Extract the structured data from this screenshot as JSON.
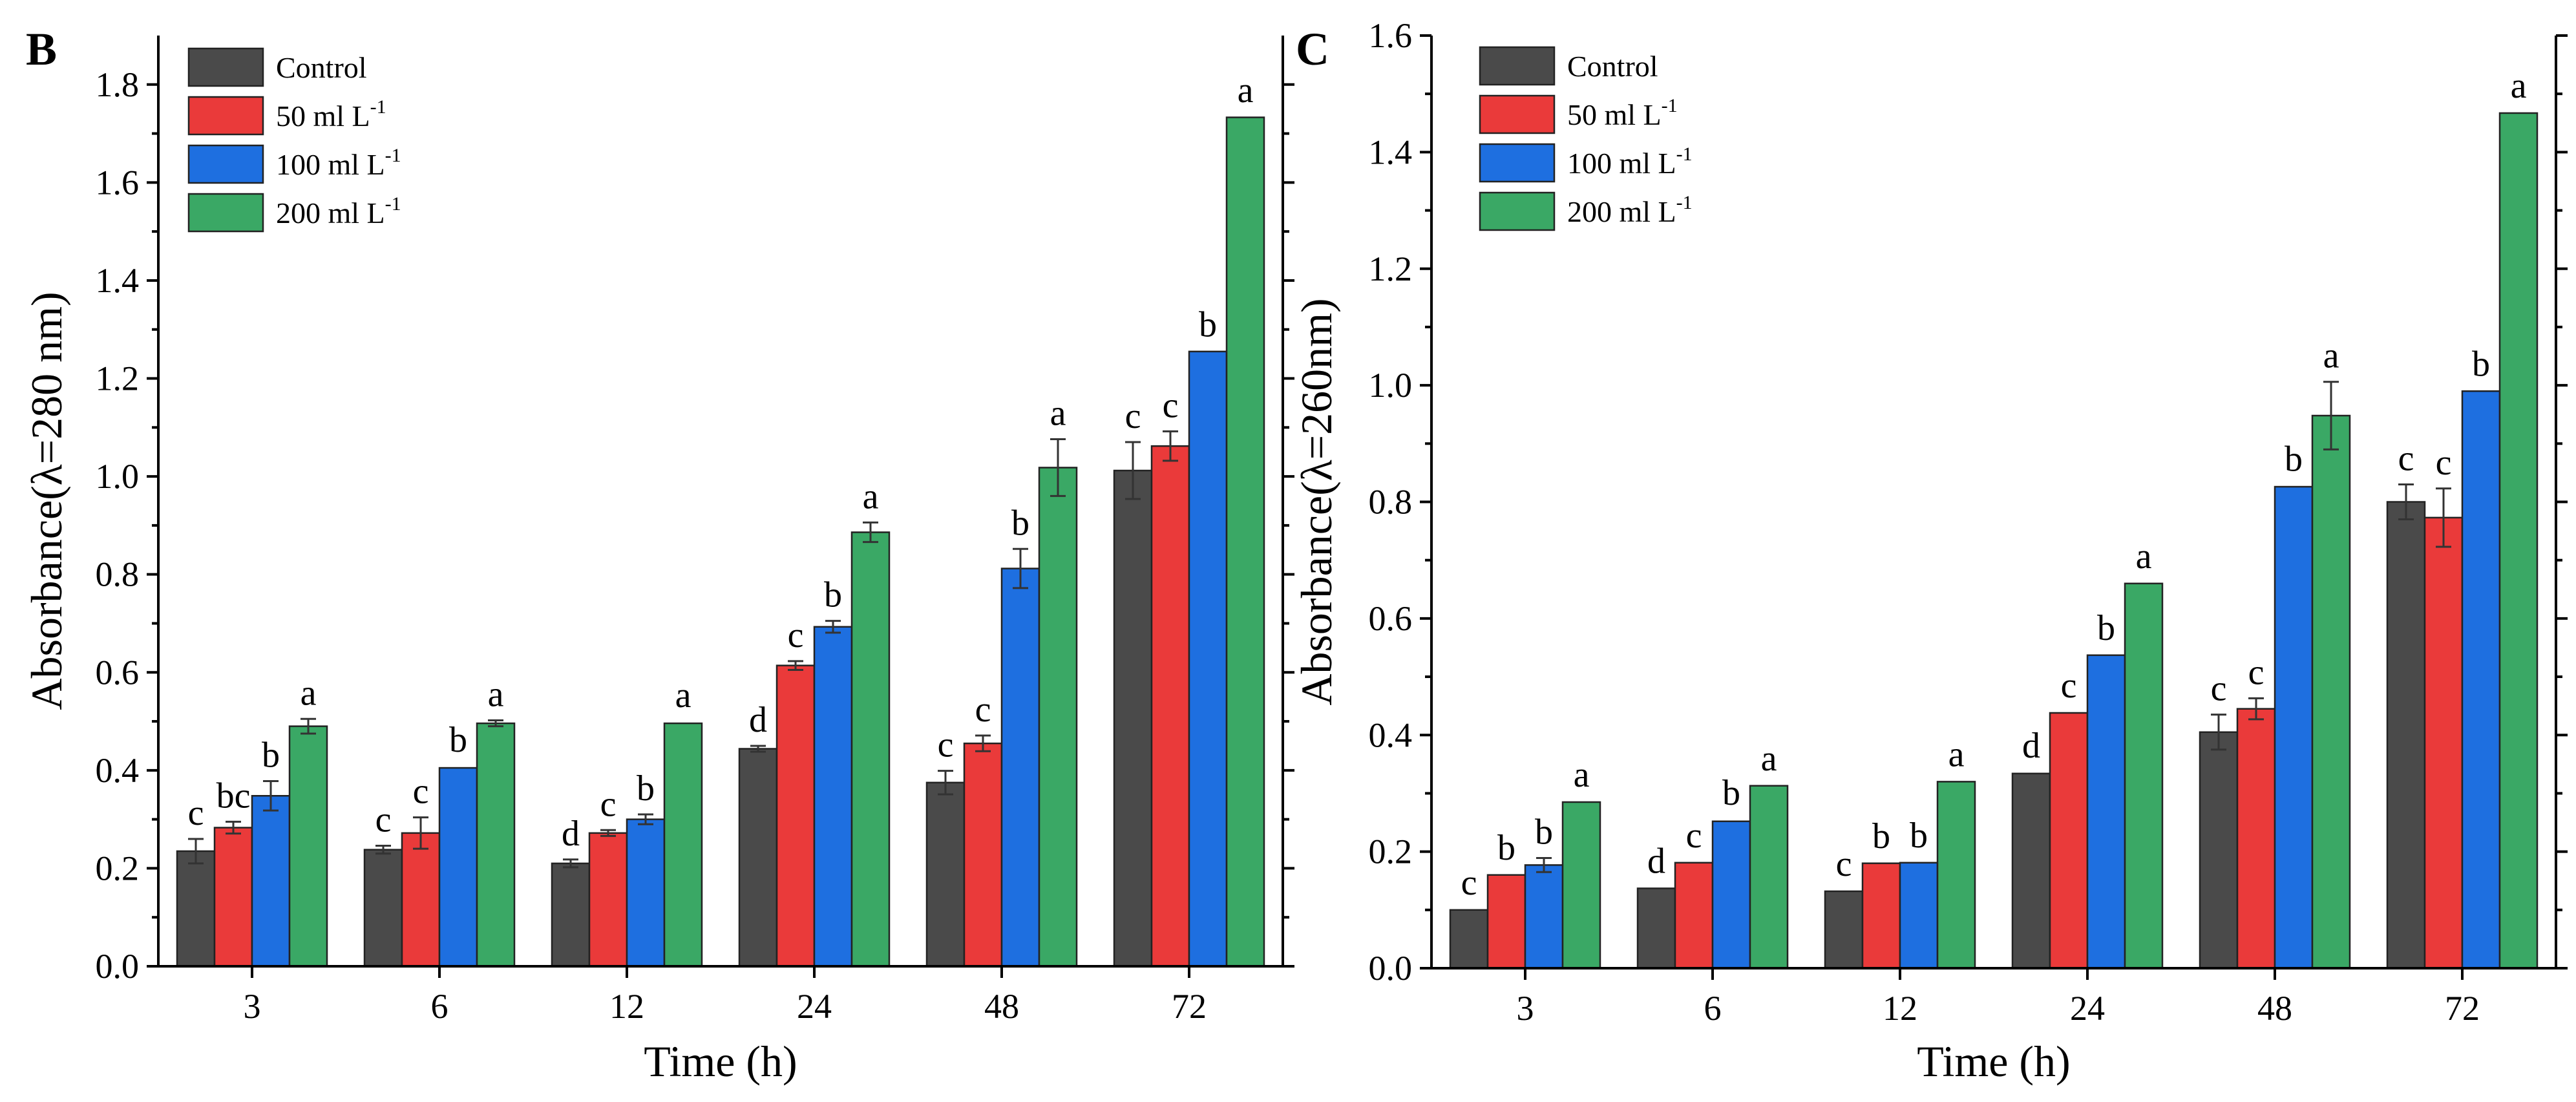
{
  "figure": {
    "panels": [
      "B",
      "C"
    ]
  },
  "chart_data": [
    {
      "panel": "B",
      "type": "bar",
      "title": "",
      "xlabel": "Time (h)",
      "ylabel": "Absorbance(λ=280 nm)",
      "ylim": [
        0,
        1.9
      ],
      "yticks": [
        "0.0",
        "0.2",
        "0.4",
        "0.6",
        "0.8",
        "1.0",
        "1.2",
        "1.4",
        "1.6",
        "1.8"
      ],
      "categories": [
        "3",
        "6",
        "12",
        "24",
        "48",
        "72"
      ],
      "legend": {
        "placement": "top-left",
        "unit_base": "ml L",
        "unit_sup": "-1"
      },
      "series": [
        {
          "name": "Control",
          "color": "#4a4a4a",
          "values": [
            0.235,
            0.238,
            0.21,
            0.444,
            0.375,
            1.012
          ],
          "errors": [
            0.025,
            0.008,
            0.008,
            0.006,
            0.024,
            0.058
          ],
          "labels": [
            "c",
            "c",
            "d",
            "d",
            "c",
            "c"
          ]
        },
        {
          "name": "50 ml L",
          "color": "#ea3a3a",
          "values": [
            0.283,
            0.272,
            0.272,
            0.614,
            0.455,
            1.062
          ],
          "errors": [
            0.012,
            0.032,
            0.006,
            0.009,
            0.016,
            0.03
          ],
          "labels": [
            "bc",
            "c",
            "c",
            "c",
            "c",
            "c"
          ]
        },
        {
          "name": "100 ml L",
          "color": "#1e6fe0",
          "values": [
            0.348,
            0.405,
            0.3,
            0.693,
            0.812,
            1.255
          ],
          "errors": [
            0.03,
            0.004,
            0.01,
            0.012,
            0.04,
            0.002
          ],
          "labels": [
            "b",
            "b",
            "b",
            "b",
            "b",
            "b"
          ]
        },
        {
          "name": "200 ml L",
          "color": "#3aa865",
          "values": [
            0.49,
            0.496,
            0.496,
            0.886,
            1.018,
            1.733
          ],
          "errors": [
            0.015,
            0.006,
            0.004,
            0.02,
            0.058,
            0.002
          ],
          "labels": [
            "a",
            "a",
            "a",
            "a",
            "a",
            "a"
          ]
        }
      ]
    },
    {
      "panel": "C",
      "type": "bar",
      "title": "",
      "xlabel": "Time (h)",
      "ylabel": "Absorbance(λ=260nm)",
      "ylim": [
        0,
        1.6
      ],
      "yticks": [
        "0.0",
        "0.2",
        "0.4",
        "0.6",
        "0.8",
        "1.0",
        "1.2",
        "1.4",
        "1.6"
      ],
      "categories": [
        "3",
        "6",
        "12",
        "24",
        "48",
        "72"
      ],
      "legend": {
        "placement": "top-left",
        "unit_base": "ml L",
        "unit_sup": "-1"
      },
      "series": [
        {
          "name": "Control",
          "color": "#4a4a4a",
          "values": [
            0.1,
            0.137,
            0.132,
            0.334,
            0.405,
            0.8
          ],
          "errors": [
            0.002,
            0.002,
            0.002,
            0.003,
            0.03,
            0.03
          ],
          "labels": [
            "c",
            "d",
            "c",
            "d",
            "c",
            "c"
          ]
        },
        {
          "name": "50 ml L",
          "color": "#ea3a3a",
          "values": [
            0.16,
            0.181,
            0.18,
            0.438,
            0.445,
            0.773
          ],
          "errors": [
            0.002,
            0.002,
            0.002,
            0.002,
            0.018,
            0.05
          ],
          "labels": [
            "b",
            "c",
            "b",
            "c",
            "c",
            "c"
          ]
        },
        {
          "name": "100 ml L",
          "color": "#1e6fe0",
          "values": [
            0.177,
            0.252,
            0.181,
            0.537,
            0.826,
            0.99
          ],
          "errors": [
            0.012,
            0.004,
            0.002,
            0.002,
            0.003,
            0.002
          ],
          "labels": [
            "b",
            "b",
            "b",
            "b",
            "b",
            "b"
          ]
        },
        {
          "name": "200 ml L",
          "color": "#3aa865",
          "values": [
            0.285,
            0.313,
            0.32,
            0.66,
            0.948,
            1.467
          ],
          "errors": [
            0.002,
            0.002,
            0.002,
            0.002,
            0.058,
            0.002
          ],
          "labels": [
            "a",
            "a",
            "a",
            "a",
            "a",
            "a"
          ]
        }
      ]
    }
  ]
}
